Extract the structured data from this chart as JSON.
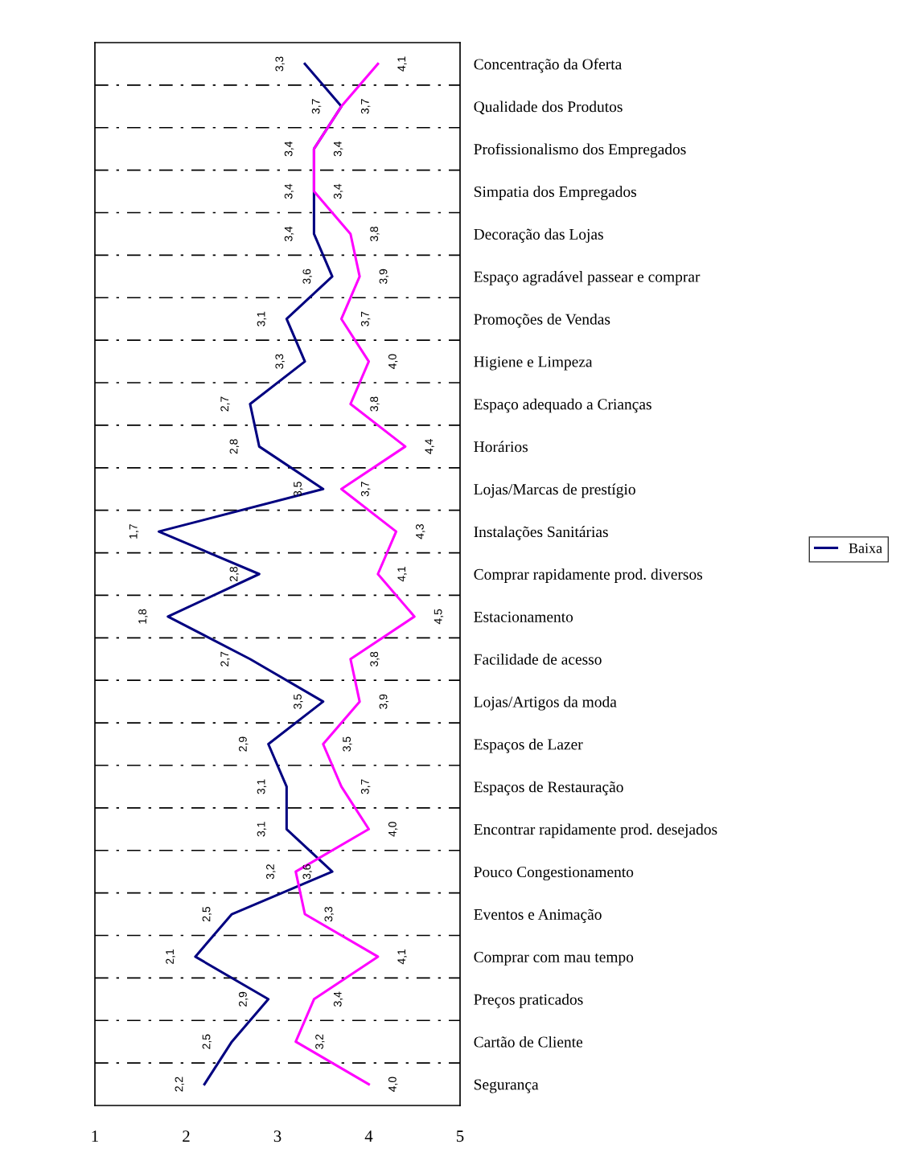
{
  "chart_data": {
    "type": "line",
    "orientation": "horizontal",
    "categories": [
      "Concentração da Oferta",
      "Qualidade dos Produtos",
      "Profissionalismo dos Empregados",
      "Simpatia dos Empregados",
      "Decoração das Lojas",
      "Espaço agradável passear e comprar",
      "Promoções de Vendas",
      "Higiene e Limpeza",
      "Espaço adequado a Crianças",
      "Horários",
      "Lojas/Marcas de prestígio",
      "Instalações Sanitárias",
      "Comprar rapidamente prod. diversos",
      "Estacionamento",
      "Facilidade de acesso",
      "Lojas/Artigos da moda",
      "Espaços de Lazer",
      "Espaços de Restauração",
      "Encontrar rapidamente prod. desejados",
      "Pouco Congestionamento",
      "Eventos e Animação",
      "Comprar com mau tempo",
      "Preços praticados",
      "Cartão de Cliente",
      "Segurança"
    ],
    "series": [
      {
        "name": "Baixa",
        "color": "#000080",
        "values": [
          3.3,
          3.7,
          3.4,
          3.4,
          3.4,
          3.6,
          3.1,
          3.3,
          2.7,
          2.8,
          3.5,
          1.7,
          2.8,
          1.8,
          2.7,
          3.5,
          2.9,
          3.1,
          3.1,
          3.6,
          2.5,
          2.1,
          2.9,
          2.5,
          2.2
        ],
        "value_labels": [
          "3,3",
          "3,7",
          "3,4",
          "3,4",
          "3,4",
          "3,6",
          "3,1",
          "3,3",
          "2,7",
          "2,8",
          "3,5",
          "1,7",
          "2,8",
          "1,8",
          "2,7",
          "3,5",
          "2,9",
          "3,1",
          "3,1",
          "3,6",
          "2,5",
          "2,1",
          "2,9",
          "2,5",
          "2,2"
        ]
      },
      {
        "color": "#ff00ff",
        "values": [
          4.1,
          3.7,
          3.4,
          3.4,
          3.8,
          3.9,
          3.7,
          4.0,
          3.8,
          4.4,
          3.7,
          4.3,
          4.1,
          4.5,
          3.8,
          3.9,
          3.5,
          3.7,
          4.0,
          3.2,
          3.3,
          4.1,
          3.4,
          3.2,
          4.0
        ],
        "value_labels": [
          "4,1",
          "3,7",
          "3,4",
          "3,4",
          "3,8",
          "3,9",
          "3,7",
          "4,0",
          "3,8",
          "4,4",
          "3,7",
          "4,3",
          "4,1",
          "4,5",
          "3,8",
          "3,9",
          "3,5",
          "3,7",
          "4,0",
          "3,2",
          "3,3",
          "4,1",
          "3,4",
          "3,2",
          "4,0"
        ]
      }
    ],
    "xlim": [
      1,
      5
    ],
    "xticks": [
      1,
      2,
      3,
      4,
      5
    ],
    "grid": "y",
    "legend": "right",
    "marker": "none",
    "line_style": "solid"
  }
}
